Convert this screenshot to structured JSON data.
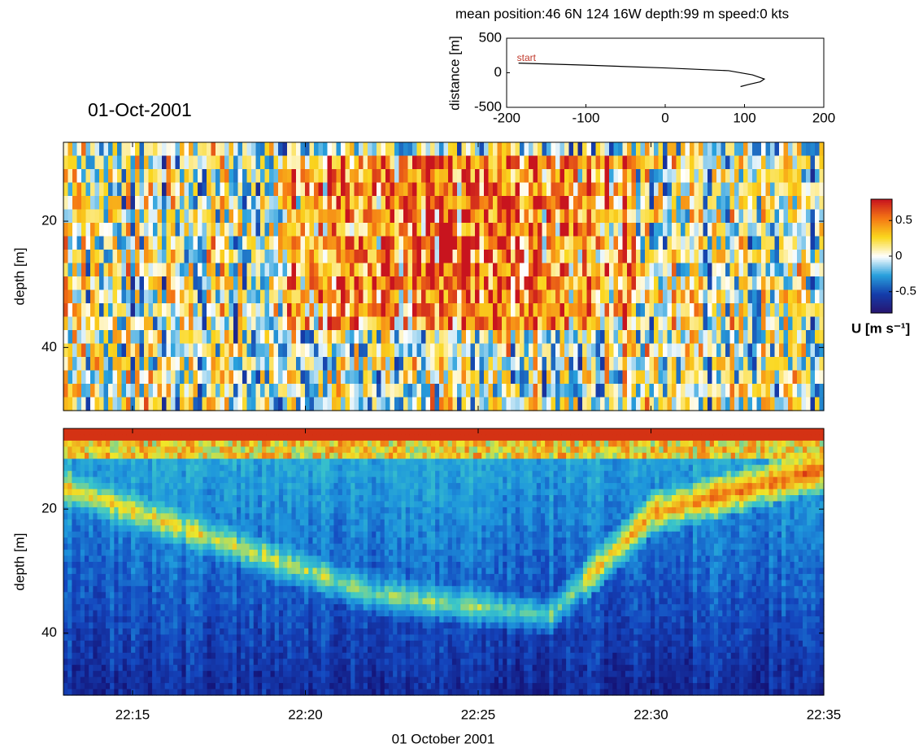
{
  "chart_data": [
    {
      "type": "line",
      "title": "mean position:46 6N 124 16W    depth:99 m  speed:0 kts",
      "ylabel": "distance [m]",
      "xlim": [
        -200,
        200
      ],
      "xticks": [
        -200,
        -100,
        0,
        100,
        200
      ],
      "ylim": [
        -500,
        500
      ],
      "yticks": [
        -500,
        0,
        500
      ],
      "x": [
        -185,
        -100,
        0,
        80,
        110,
        125,
        120,
        105,
        95
      ],
      "values": [
        140,
        110,
        70,
        30,
        -30,
        -90,
        -130,
        -170,
        -200
      ],
      "color": "#000000",
      "annotation": "start",
      "annotation_color": "#c0392b"
    },
    {
      "type": "heatmap",
      "title": "01-Oct-2001",
      "ylabel": "depth [m]",
      "xlim": [
        "22:13",
        "22:35"
      ],
      "xticks": [
        "22:15",
        "22:20",
        "22:25",
        "22:30",
        "22:35"
      ],
      "ylim": [
        7.5,
        50
      ],
      "y_reversed": true,
      "yticks": [
        20,
        40
      ],
      "colormap": "diverging",
      "colorbar": {
        "label": "U [m s⁻¹]",
        "lim": [
          -0.8,
          0.8
        ],
        "ticks": [
          -0.5,
          0,
          0.5
        ]
      }
    },
    {
      "type": "heatmap",
      "ylabel": "depth [m]",
      "xlim": [
        "22:13",
        "22:35"
      ],
      "xticks": [
        "22:15",
        "22:20",
        "22:25",
        "22:30",
        "22:35"
      ],
      "xtick_labels": true,
      "xlabel": "01 October 2001",
      "ylim": [
        7,
        50
      ],
      "y_reversed": true,
      "yticks": [
        20,
        40
      ],
      "colormap": "jet"
    }
  ]
}
